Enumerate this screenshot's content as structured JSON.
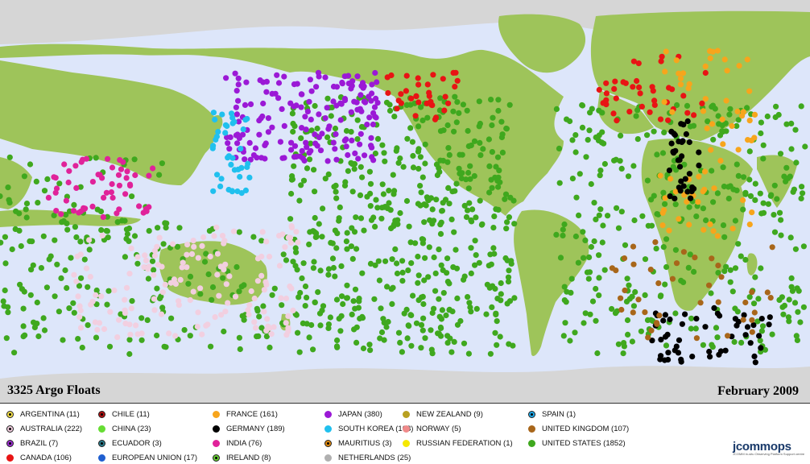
{
  "map": {
    "title_left": "3325 Argo Floats",
    "title_right": "February 2009",
    "colors": {
      "ocean": "#dde6fa",
      "land": "#9ec45a",
      "ice": "#d6d6d6"
    }
  },
  "legend": [
    {
      "label": "ARGENTINA (11)",
      "color": "#f5e04a",
      "style": "dot"
    },
    {
      "label": "AUSTRALIA (222)",
      "color": "#f2cfe0",
      "style": "dot"
    },
    {
      "label": "BRAZIL (7)",
      "color": "#9b2fd0",
      "style": "dot"
    },
    {
      "label": "CANADA (106)",
      "color": "#e81414",
      "style": "solid"
    },
    {
      "label": "CHILE (11)",
      "color": "#b01010",
      "style": "dot"
    },
    {
      "label": "CHINA (23)",
      "color": "#66dd33",
      "style": "solid"
    },
    {
      "label": "ECUADOR (3)",
      "color": "#2a7a8a",
      "style": "dot"
    },
    {
      "label": "EUROPEAN UNION (17)",
      "color": "#1f5fd0",
      "style": "solid"
    },
    {
      "label": "FRANCE (161)",
      "color": "#f7a51c",
      "style": "solid"
    },
    {
      "label": "GERMANY (189)",
      "color": "#000000",
      "style": "solid"
    },
    {
      "label": "INDIA (76)",
      "color": "#e0229a",
      "style": "solid"
    },
    {
      "label": "IRELAND (8)",
      "color": "#66cc33",
      "style": "dot"
    },
    {
      "label": "JAPAN (380)",
      "color": "#9b19d6",
      "style": "solid"
    },
    {
      "label": "SOUTH KOREA (108)",
      "color": "#20c0ee",
      "style": "solid"
    },
    {
      "label": "MAURITIUS (3)",
      "color": "#e08a10",
      "style": "dot"
    },
    {
      "label": "NETHERLANDS (25)",
      "color": "#b0b0b0",
      "style": "solid"
    },
    {
      "label": "NEW ZEALAND (9)",
      "color": "#b8a020",
      "style": "solid"
    },
    {
      "label": "NORWAY (5)",
      "color": "#f08a8a",
      "style": "solid"
    },
    {
      "label": "RUSSIAN FEDERATION (1)",
      "color": "#f5e800",
      "style": "solid"
    },
    {
      "label": "SPAIN (1)",
      "color": "#20a8e8",
      "style": "dot"
    },
    {
      "label": "UNITED KINGDOM (107)",
      "color": "#a8661a",
      "style": "solid"
    },
    {
      "label": "UNITED STATES (1852)",
      "color": "#3fa81e",
      "style": "solid"
    }
  ],
  "logo": {
    "name": "jcommops",
    "tagline": "JCOMM in-situ Observing Platform Support centre"
  }
}
